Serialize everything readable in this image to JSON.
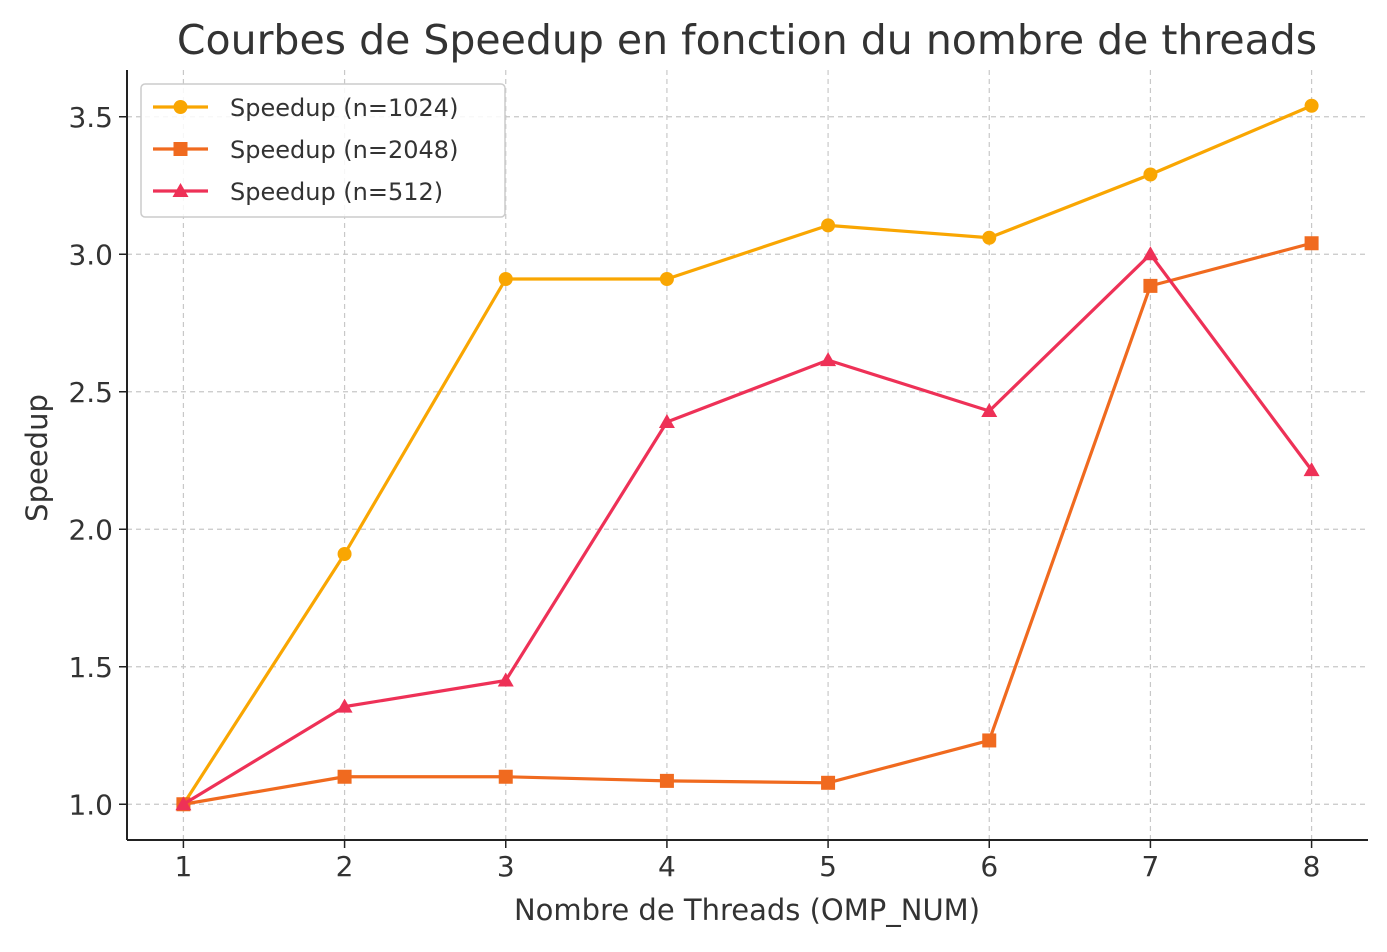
{
  "chart_data": {
    "type": "line",
    "title": "Courbes de Speedup en fonction du nombre de threads",
    "xlabel": "Nombre de Threads (OMP_NUM)",
    "ylabel": "Speedup",
    "x": [
      1,
      2,
      3,
      4,
      5,
      6,
      7,
      8
    ],
    "x_ticks": [
      "1",
      "2",
      "3",
      "4",
      "5",
      "6",
      "7",
      "8"
    ],
    "y_ticks": [
      "1.0",
      "1.5",
      "2.0",
      "2.5",
      "3.0",
      "3.5"
    ],
    "xlim": [
      0.65,
      8.35
    ],
    "ylim": [
      0.87,
      3.67
    ],
    "grid": true,
    "legend_position": "top-left",
    "series": [
      {
        "name": "Speedup (n=1024)",
        "marker": "circle",
        "color": "#F9A602",
        "values": [
          1.0,
          1.91,
          2.91,
          2.91,
          3.105,
          3.06,
          3.29,
          3.54
        ]
      },
      {
        "name": "Speedup (n=2048)",
        "marker": "square",
        "color": "#F06A1F",
        "values": [
          1.0,
          1.1,
          1.1,
          1.085,
          1.078,
          1.232,
          2.885,
          3.04
        ]
      },
      {
        "name": "Speedup (n=512)",
        "marker": "triangle",
        "color": "#EE3157",
        "values": [
          1.0,
          1.355,
          1.45,
          2.39,
          2.615,
          2.43,
          3.0,
          2.215
        ]
      }
    ]
  }
}
